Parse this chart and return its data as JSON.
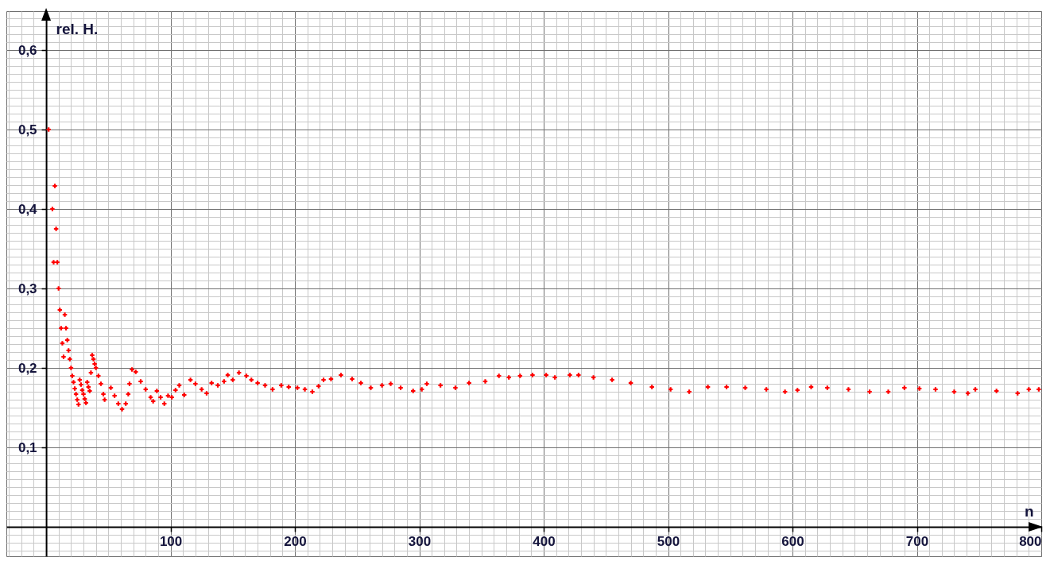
{
  "chart_data": {
    "type": "scatter",
    "xlabel": "n",
    "ylabel": "rel. H.",
    "color": "#ff0000",
    "marker": "cross",
    "grid": true,
    "xlim": [
      -32,
      800
    ],
    "ylim": [
      -0.037,
      0.649
    ],
    "xticks": [
      100,
      200,
      300,
      400,
      500,
      600,
      700,
      800
    ],
    "yticks": [
      {
        "value": 0.1,
        "label": "0,1"
      },
      {
        "value": 0.2,
        "label": "0,2"
      },
      {
        "value": 0.3,
        "label": "0,3"
      },
      {
        "value": 0.4,
        "label": "0,4"
      },
      {
        "value": 0.5,
        "label": "0,5"
      },
      {
        "value": 0.6,
        "label": "0,6"
      }
    ],
    "x": [
      2,
      5,
      6,
      7,
      8,
      9,
      10,
      11,
      12,
      13,
      14,
      15,
      16,
      17,
      18,
      19,
      20,
      21,
      22,
      23,
      24,
      25,
      26,
      27,
      28,
      29,
      30,
      31,
      32,
      33,
      34,
      35,
      36,
      37,
      38,
      39,
      40,
      42,
      44,
      46,
      47,
      52,
      55,
      58,
      61,
      64,
      66,
      67,
      69,
      72,
      76,
      80,
      84,
      86,
      89,
      92,
      95,
      98,
      101,
      104,
      107,
      111,
      116,
      120,
      125,
      129,
      133,
      138,
      143,
      146,
      150,
      155,
      161,
      165,
      170,
      176,
      182,
      189,
      195,
      202,
      208,
      214,
      219,
      223,
      229,
      237,
      246,
      253,
      261,
      270,
      277,
      285,
      295,
      302,
      306,
      317,
      329,
      340,
      353,
      364,
      372,
      381,
      391,
      402,
      409,
      421,
      428,
      440,
      455,
      470,
      487,
      502,
      517,
      532,
      547,
      562,
      579,
      594,
      604,
      615,
      628,
      645,
      662,
      677,
      690,
      702,
      715,
      730,
      741,
      747,
      764,
      781,
      790,
      798
    ],
    "values": [
      0.5,
      0.4,
      0.333,
      0.429,
      0.375,
      0.333,
      0.3,
      0.273,
      0.25,
      0.231,
      0.214,
      0.267,
      0.25,
      0.235,
      0.222,
      0.211,
      0.2,
      0.19,
      0.182,
      0.174,
      0.167,
      0.16,
      0.154,
      0.185,
      0.179,
      0.172,
      0.167,
      0.161,
      0.156,
      0.182,
      0.176,
      0.171,
      0.194,
      0.216,
      0.211,
      0.205,
      0.2,
      0.19,
      0.18,
      0.167,
      0.16,
      0.175,
      0.165,
      0.155,
      0.148,
      0.155,
      0.167,
      0.18,
      0.198,
      0.195,
      0.183,
      0.173,
      0.163,
      0.158,
      0.171,
      0.163,
      0.155,
      0.165,
      0.163,
      0.172,
      0.178,
      0.166,
      0.185,
      0.18,
      0.173,
      0.168,
      0.181,
      0.178,
      0.183,
      0.191,
      0.185,
      0.194,
      0.19,
      0.185,
      0.181,
      0.178,
      0.173,
      0.178,
      0.176,
      0.175,
      0.173,
      0.17,
      0.177,
      0.185,
      0.186,
      0.191,
      0.186,
      0.181,
      0.175,
      0.178,
      0.18,
      0.175,
      0.171,
      0.173,
      0.18,
      0.178,
      0.175,
      0.181,
      0.183,
      0.19,
      0.188,
      0.19,
      0.191,
      0.191,
      0.188,
      0.191,
      0.191,
      0.188,
      0.185,
      0.181,
      0.176,
      0.173,
      0.17,
      0.176,
      0.176,
      0.175,
      0.173,
      0.17,
      0.172,
      0.176,
      0.175,
      0.173,
      0.17,
      0.17,
      0.175,
      0.174,
      0.173,
      0.17,
      0.168,
      0.173,
      0.171,
      0.168,
      0.173,
      0.173
    ]
  }
}
